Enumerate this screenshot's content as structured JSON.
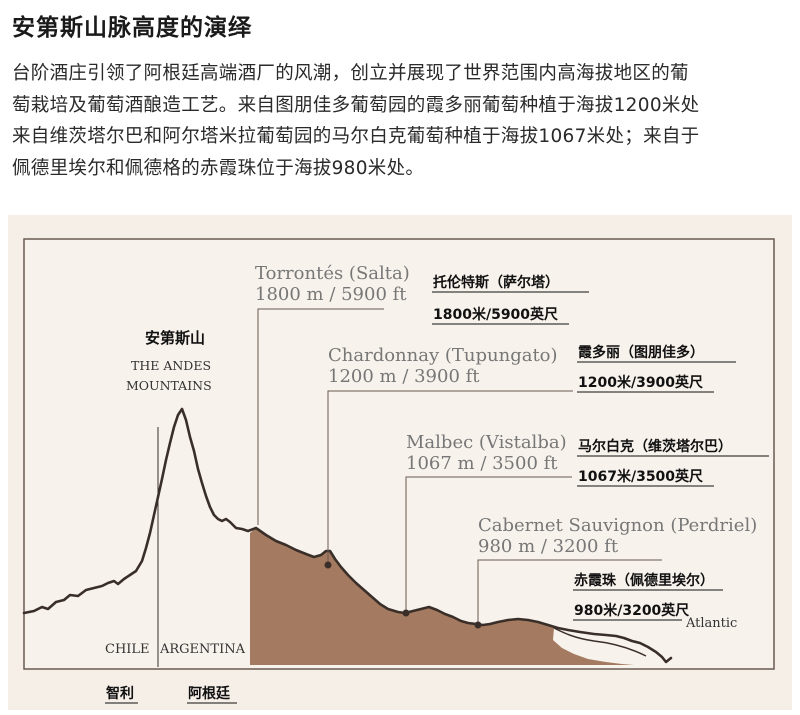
{
  "title": "安第斯山脉高度的演绎",
  "intro_lines": [
    "台阶酒庄引领了阿根廷高端酒厂的风潮，创立并展现了世界范围内高海拔地区的葡",
    "萄栽培及葡萄酒酿造工艺。来自图朋佳多葡萄园的霞多丽葡萄种植于海拔1200米处",
    "来自维茨塔尔巴和阿尔塔米拉葡萄园的马尔白克葡萄种植于海拔1067米处；来自于",
    "佩德里埃尔和佩德格的赤霞珠位于海拔980米处。"
  ],
  "diagram": {
    "mountain_cn": "安第斯山",
    "mountain_en_1": "THE ANDES",
    "mountain_en_2": "MOUNTAINS",
    "chile_en": "CHILE",
    "argentina_en": "ARGENTINA",
    "chile_cn": "智利",
    "argentina_cn": "阿根廷",
    "atlantic": "Atlantic",
    "colors": {
      "land": "#a47b60",
      "line": "#3a2e28",
      "box": "#f5efe8",
      "frame": "#6a5a50"
    },
    "sites": [
      {
        "en_name": "Torrontés (Salta)",
        "en_alt": "1800 m / 5900 ft",
        "cn_name": "托伦特斯（萨尔塔）",
        "cn_alt": "1800米/5900英尺",
        "altitude_m": 1800
      },
      {
        "en_name": "Chardonnay (Tupungato)",
        "en_alt": "1200 m / 3900 ft",
        "cn_name": "霞多丽（图朋佳多）",
        "cn_alt": "1200米/3900英尺",
        "altitude_m": 1200
      },
      {
        "en_name": "Malbec (Vistalba)",
        "en_alt": "1067 m / 3500 ft",
        "cn_name": "马尔白克（维茨塔尔巴）",
        "cn_alt": "1067米/3500英尺",
        "altitude_m": 1067
      },
      {
        "en_name": "Cabernet Sauvignon (Perdriel)",
        "en_alt": "980 m / 3200 ft",
        "cn_name": "赤霞珠（佩德里埃尔）",
        "cn_alt": "980米/3200英尺",
        "altitude_m": 980
      }
    ]
  }
}
